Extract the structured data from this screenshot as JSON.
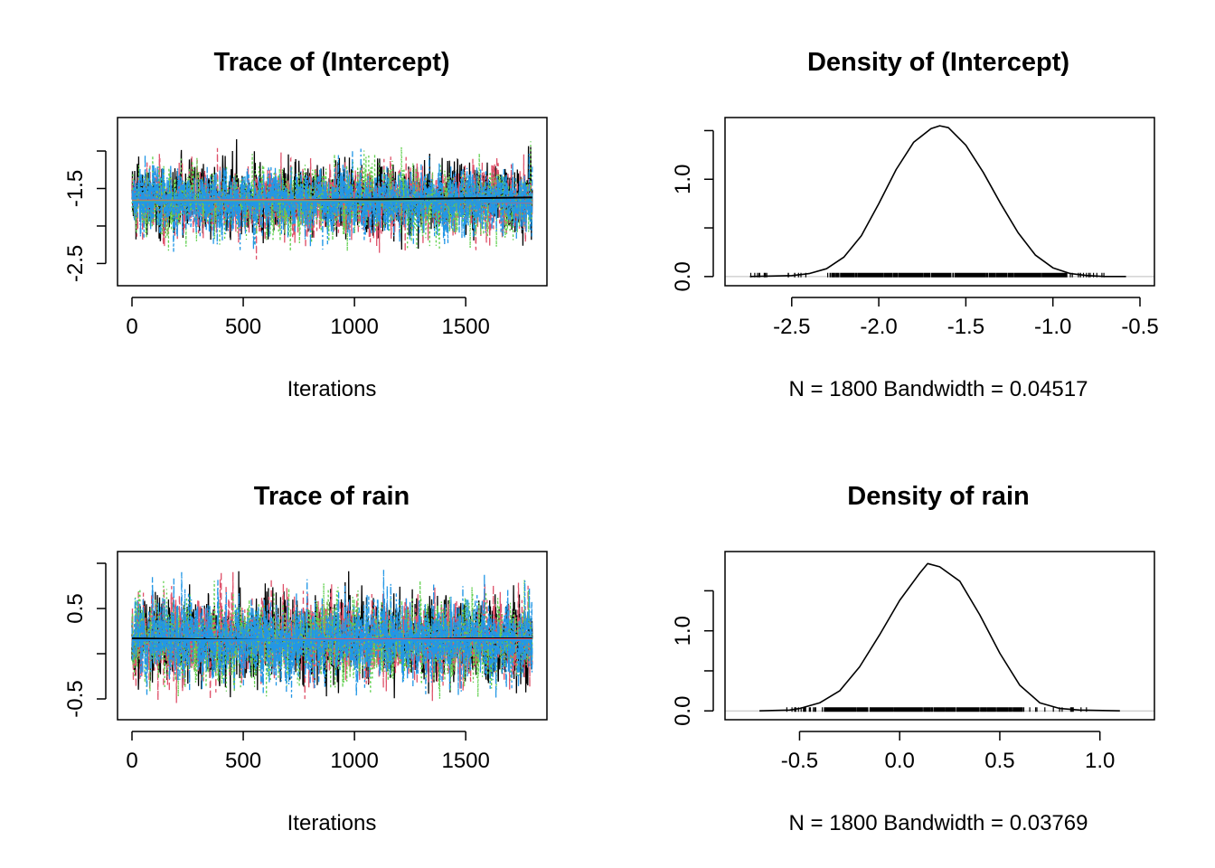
{
  "chart_data": [
    {
      "type": "line",
      "subtype": "mcmc-trace",
      "title": "Trace of (Intercept)",
      "xlabel": "Iterations",
      "ylabel": "",
      "xlim": [
        0,
        1800
      ],
      "ylim": [
        -2.7,
        -0.65
      ],
      "x_ticks": [
        0,
        500,
        1000,
        1500
      ],
      "x_tick_labels": [
        "0",
        "500",
        "1000",
        "1500"
      ],
      "y_ticks": [
        -2.5,
        -2.0,
        -1.5,
        -1.0
      ],
      "y_tick_labels": [
        "-2.5",
        "",
        "-1.5",
        ""
      ],
      "n_iterations": 1800,
      "series": [
        {
          "color": "#000000",
          "dash": "solid",
          "mean": -1.63,
          "sd": 0.22,
          "min": -2.64,
          "max": -0.73,
          "smooth": [
            -1.67,
            -1.67,
            -1.66,
            -1.65,
            -1.64,
            -1.63,
            -1.62
          ]
        },
        {
          "color": "#DF536B",
          "dash": "dashed",
          "mean": -1.68,
          "sd": 0.22,
          "min": -2.45,
          "max": -0.8,
          "smooth": [
            -1.66,
            -1.66,
            -1.65,
            -1.66,
            -1.67,
            -1.68,
            -1.69
          ]
        },
        {
          "color": "#61D04F",
          "dash": "dotted",
          "mean": -1.67,
          "sd": 0.22,
          "min": -2.35,
          "max": -0.8,
          "smooth": [
            -1.67,
            -1.67,
            -1.67,
            -1.67,
            -1.67,
            -1.68,
            -1.68
          ]
        },
        {
          "color": "#2297E6",
          "dash": "dotdash",
          "mean": -1.67,
          "sd": 0.22,
          "min": -2.6,
          "max": -0.85,
          "smooth": [
            -1.68,
            -1.68,
            -1.68,
            -1.68,
            -1.68,
            -1.68,
            -1.68
          ]
        }
      ]
    },
    {
      "type": "line",
      "subtype": "density",
      "title": "Density of (Intercept)",
      "xlabel": "N = 1800   Bandwidth = 0.04517",
      "ylabel": "",
      "xlim": [
        -2.8,
        -0.5
      ],
      "ylim": [
        -0.02,
        1.56
      ],
      "x_ticks": [
        -2.5,
        -2.0,
        -1.5,
        -1.0,
        -0.5
      ],
      "x_tick_labels": [
        "-2.5",
        "-2.0",
        "-1.5",
        "-1.0",
        "-0.5"
      ],
      "y_ticks": [
        0.0,
        0.5,
        1.0,
        1.5
      ],
      "y_tick_labels": [
        "0.0",
        "",
        "1.0",
        ""
      ],
      "curve": {
        "x": [
          -2.74,
          -2.5,
          -2.4,
          -2.3,
          -2.2,
          -2.1,
          -2.0,
          -1.9,
          -1.8,
          -1.7,
          -1.65,
          -1.6,
          -1.5,
          -1.4,
          -1.3,
          -1.2,
          -1.1,
          -1.0,
          -0.9,
          -0.8,
          -0.7,
          -0.58
        ],
        "y": [
          0.0,
          0.01,
          0.03,
          0.08,
          0.2,
          0.42,
          0.75,
          1.1,
          1.38,
          1.52,
          1.55,
          1.53,
          1.35,
          1.07,
          0.75,
          0.45,
          0.22,
          0.09,
          0.03,
          0.01,
          0.0,
          0.0
        ]
      },
      "rug": {
        "from": -2.74,
        "to": -0.7,
        "dense_from": -2.28,
        "dense_to": -0.92
      }
    },
    {
      "type": "line",
      "subtype": "mcmc-trace",
      "title": "Trace of rain",
      "xlabel": "Iterations",
      "ylabel": "",
      "xlim": [
        0,
        1800
      ],
      "ylim": [
        -0.65,
        1.05
      ],
      "x_ticks": [
        0,
        500,
        1000,
        1500
      ],
      "x_tick_labels": [
        "0",
        "500",
        "1000",
        "1500"
      ],
      "y_ticks": [
        -0.5,
        0.0,
        0.5,
        1.0
      ],
      "y_tick_labels": [
        "-0.5",
        "",
        "0.5",
        ""
      ],
      "n_iterations": 1800,
      "series": [
        {
          "color": "#000000",
          "dash": "solid",
          "mean": 0.16,
          "sd": 0.22,
          "min": -0.58,
          "max": 0.93,
          "smooth": [
            0.17,
            0.16,
            0.15,
            0.15,
            0.16,
            0.17,
            0.17
          ]
        },
        {
          "color": "#DF536B",
          "dash": "dashed",
          "mean": 0.15,
          "sd": 0.22,
          "min": -0.55,
          "max": 1.0,
          "smooth": [
            0.15,
            0.15,
            0.15,
            0.16,
            0.16,
            0.16,
            0.16
          ]
        },
        {
          "color": "#61D04F",
          "dash": "dotted",
          "mean": 0.15,
          "sd": 0.22,
          "min": -0.52,
          "max": 0.85,
          "smooth": [
            0.15,
            0.15,
            0.15,
            0.15,
            0.15,
            0.15,
            0.15
          ]
        },
        {
          "color": "#2297E6",
          "dash": "dotdash",
          "mean": 0.15,
          "sd": 0.22,
          "min": -0.5,
          "max": 0.95,
          "smooth": [
            0.15,
            0.15,
            0.15,
            0.15,
            0.15,
            0.15,
            0.15
          ]
        }
      ]
    },
    {
      "type": "line",
      "subtype": "density",
      "title": "Density of rain",
      "xlabel": "N = 1800   Bandwidth = 0.03769",
      "ylabel": "",
      "xlim": [
        -0.8,
        1.2
      ],
      "ylim": [
        -0.02,
        1.9
      ],
      "x_ticks": [
        -0.5,
        0.0,
        0.5,
        1.0
      ],
      "x_tick_labels": [
        "-0.5",
        "0.0",
        "0.5",
        "1.0"
      ],
      "y_ticks": [
        0.0,
        0.5,
        1.0,
        1.5
      ],
      "y_tick_labels": [
        "0.0",
        "",
        "1.0",
        ""
      ],
      "curve": {
        "x": [
          -0.7,
          -0.55,
          -0.5,
          -0.4,
          -0.3,
          -0.2,
          -0.1,
          0.0,
          0.1,
          0.14,
          0.2,
          0.3,
          0.4,
          0.5,
          0.6,
          0.7,
          0.8,
          0.9,
          1.1
        ],
        "y": [
          0.0,
          0.01,
          0.03,
          0.1,
          0.25,
          0.55,
          0.95,
          1.38,
          1.72,
          1.84,
          1.8,
          1.62,
          1.2,
          0.72,
          0.32,
          0.1,
          0.03,
          0.01,
          0.0
        ]
      },
      "rug": {
        "from": -0.58,
        "to": 0.95,
        "dense_from": -0.38,
        "dense_to": 0.62
      }
    }
  ]
}
